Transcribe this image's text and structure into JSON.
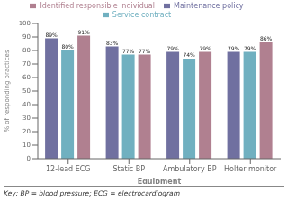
{
  "chart_data": {
    "type": "bar",
    "categories": [
      "12-lead ECG",
      "Static BP",
      "Ambulatory BP",
      "Holter monitor"
    ],
    "series": [
      {
        "name": "Maintenance policy",
        "color": "#7070a0",
        "values": [
          89,
          83,
          79,
          79
        ],
        "value_labels": [
          "89%",
          "83%",
          "79%",
          "79%"
        ]
      },
      {
        "name": "Service contract",
        "color": "#70b0c0",
        "values": [
          80,
          77,
          74,
          79
        ],
        "value_labels": [
          "80%",
          "77%",
          "74%",
          "79%"
        ]
      },
      {
        "name": "Identified responsible individual",
        "color": "#b08090",
        "values": [
          91,
          77,
          79,
          86
        ],
        "value_labels": [
          "91%",
          "77%",
          "79%",
          "86%"
        ]
      }
    ],
    "xlabel": "Equipment",
    "ylabel": "% of responding practices",
    "ylim": [
      0,
      100
    ],
    "yticks": [
      0,
      10,
      20,
      30,
      40,
      50,
      60,
      70,
      80,
      90,
      100
    ],
    "annotations": [
      "Key: BP = blood pressure; ECG = electrocardiogram"
    ],
    "legend": "top",
    "data_labels": true,
    "grid": false
  }
}
